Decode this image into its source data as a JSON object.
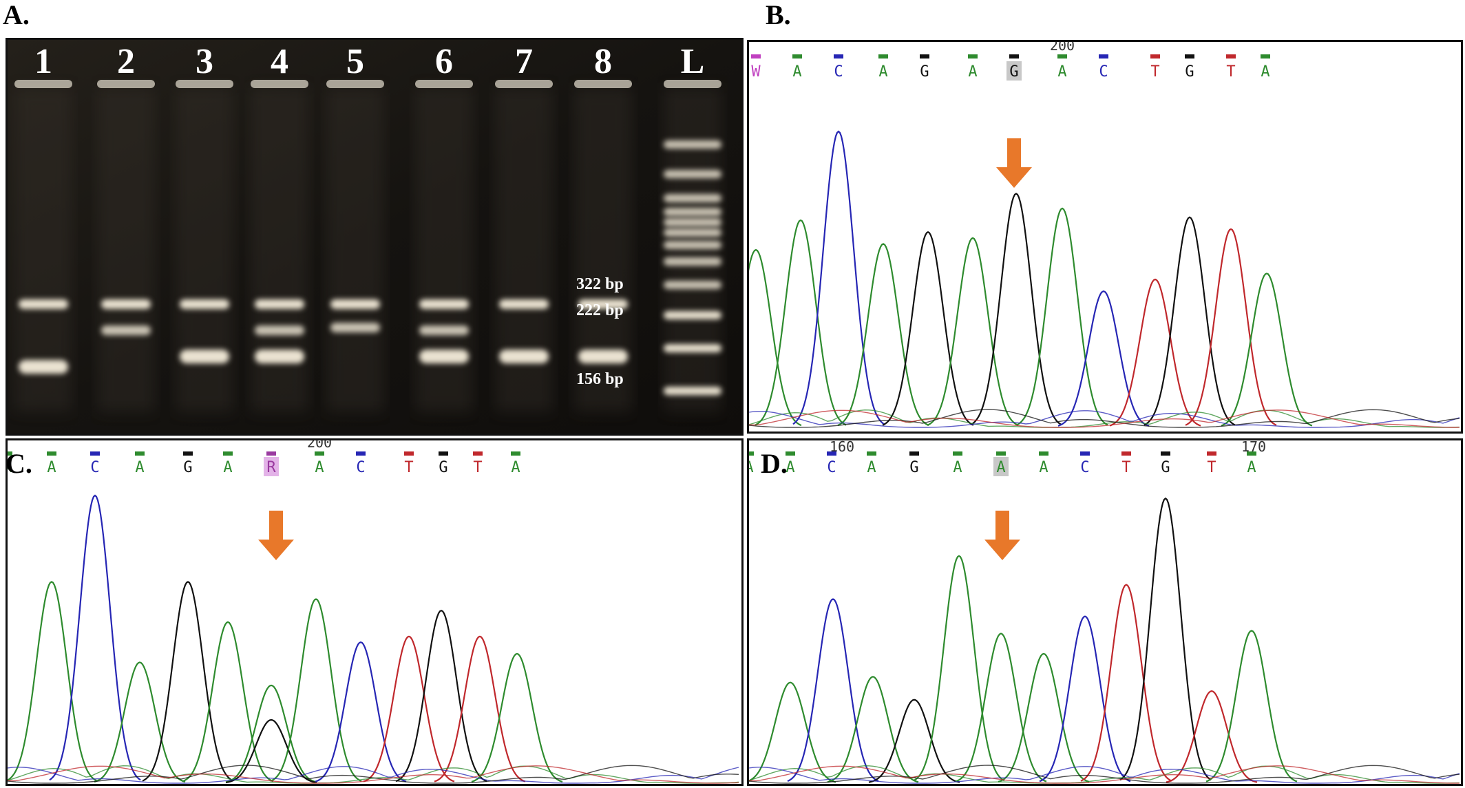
{
  "panels": {
    "A": {
      "label": "A."
    },
    "B": {
      "label": "B."
    },
    "C": {
      "label": "C."
    },
    "D": {
      "label": "D."
    }
  },
  "gel": {
    "lanes": [
      "1",
      "2",
      "3",
      "4",
      "5",
      "6",
      "7",
      "8",
      "L"
    ],
    "bands": [
      {
        "lane": "1",
        "sizes_bp": [
          322,
          156
        ]
      },
      {
        "lane": "2",
        "sizes_bp": [
          322,
          222
        ]
      },
      {
        "lane": "3",
        "sizes_bp": [
          322,
          156
        ]
      },
      {
        "lane": "4",
        "sizes_bp": [
          322,
          222,
          156
        ]
      },
      {
        "lane": "5",
        "sizes_bp": [
          322,
          222
        ]
      },
      {
        "lane": "6",
        "sizes_bp": [
          322,
          222,
          156
        ]
      },
      {
        "lane": "7",
        "sizes_bp": [
          322,
          156
        ]
      },
      {
        "lane": "8",
        "sizes_bp": [
          322,
          156
        ]
      }
    ],
    "size_labels": [
      "322 bp",
      "222 bp",
      "156 bp"
    ],
    "colors": {
      "background": "#151310",
      "band": "#f6eedb",
      "text": "#ffffff"
    }
  },
  "chromatograms": {
    "B": {
      "bases": [
        "W",
        "A",
        "C",
        "A",
        "G",
        "A",
        "G",
        "A",
        "C",
        "T",
        "G",
        "T",
        "A"
      ],
      "position_labels": [
        "200"
      ],
      "highlighted_base": "G",
      "peaks": [
        {
          "base": "A",
          "h": 0.6
        },
        {
          "base": "A",
          "h": 0.7
        },
        {
          "base": "C",
          "h": 1.0
        },
        {
          "base": "A",
          "h": 0.62
        },
        {
          "base": "G",
          "h": 0.66
        },
        {
          "base": "A",
          "h": 0.64
        },
        {
          "base": "G",
          "h": 0.79
        },
        {
          "base": "A",
          "h": 0.74
        },
        {
          "base": "C",
          "h": 0.46
        },
        {
          "base": "T",
          "h": 0.5
        },
        {
          "base": "G",
          "h": 0.71
        },
        {
          "base": "T",
          "h": 0.67
        },
        {
          "base": "A",
          "h": 0.52
        }
      ]
    },
    "C": {
      "bases": [
        "A",
        "A",
        "C",
        "A",
        "G",
        "A",
        "R",
        "A",
        "C",
        "T",
        "G",
        "T",
        "A"
      ],
      "position_labels": [
        "200"
      ],
      "highlighted_base": "R",
      "peaks": [
        {
          "base": "A",
          "h": 0.7
        },
        {
          "base": "C",
          "h": 1.0
        },
        {
          "base": "A",
          "h": 0.42
        },
        {
          "base": "G",
          "h": 0.7
        },
        {
          "base": "A",
          "h": 0.56
        },
        {
          "base": "A",
          "h": 0.34
        },
        {
          "base": "G",
          "h": 0.22
        },
        {
          "base": "A",
          "h": 0.64
        },
        {
          "base": "C",
          "h": 0.49
        },
        {
          "base": "T",
          "h": 0.51
        },
        {
          "base": "G",
          "h": 0.6
        },
        {
          "base": "T",
          "h": 0.51
        },
        {
          "base": "A",
          "h": 0.45
        }
      ]
    },
    "D": {
      "bases": [
        "A",
        "A",
        "C",
        "A",
        "G",
        "A",
        "A",
        "A",
        "C",
        "T",
        "G",
        "T",
        "A"
      ],
      "position_labels": [
        "160",
        "170"
      ],
      "highlighted_base": "A",
      "peaks": [
        {
          "base": "A",
          "h": 0.35
        },
        {
          "base": "C",
          "h": 0.64
        },
        {
          "base": "A",
          "h": 0.37
        },
        {
          "base": "G",
          "h": 0.29
        },
        {
          "base": "A",
          "h": 0.79
        },
        {
          "base": "A",
          "h": 0.52
        },
        {
          "base": "A",
          "h": 0.45
        },
        {
          "base": "C",
          "h": 0.58
        },
        {
          "base": "T",
          "h": 0.69
        },
        {
          "base": "G",
          "h": 0.99
        },
        {
          "base": "T",
          "h": 0.32
        },
        {
          "base": "A",
          "h": 0.53
        }
      ]
    },
    "base_colors": {
      "A": "#2e8b2e",
      "C": "#2626b4",
      "G": "#111111",
      "T": "#c0282c",
      "W": "#c040c0",
      "R": "#9a3aa0"
    },
    "arrow_color": "#e8782a"
  }
}
